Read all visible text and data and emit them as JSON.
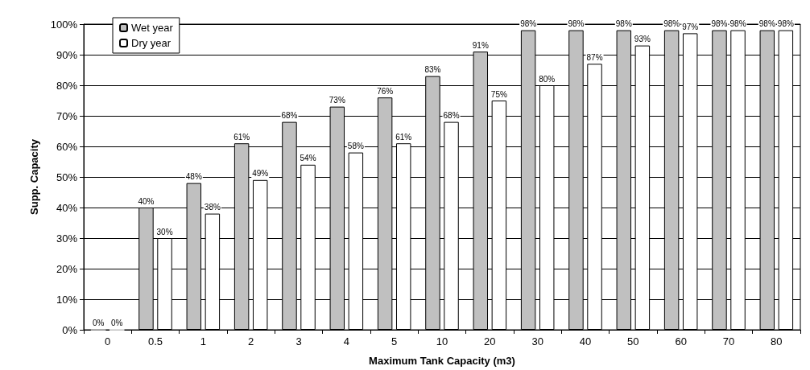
{
  "chart_data": {
    "type": "bar",
    "xlabel": "Maximum Tank Capacity (m3)",
    "ylabel": "Supp. Capacity",
    "categories": [
      "0",
      "0.5",
      "1",
      "2",
      "3",
      "4",
      "5",
      "10",
      "20",
      "30",
      "40",
      "50",
      "60",
      "70",
      "80"
    ],
    "series": [
      {
        "name": "Wet year",
        "color": "#c0c0c0",
        "values": [
          0,
          40,
          48,
          61,
          68,
          73,
          76,
          83,
          91,
          98,
          98,
          98,
          98,
          98,
          98
        ],
        "value_labels": [
          "0%",
          "40%",
          "48%",
          "61%",
          "68%",
          "73%",
          "76%",
          "83%",
          "91%",
          "98%",
          "98%",
          "98%",
          "98%",
          "98%",
          "98%"
        ]
      },
      {
        "name": "Dry year",
        "color": "#ffffff",
        "values": [
          0,
          30,
          38,
          49,
          54,
          58,
          61,
          68,
          75,
          80,
          87,
          93,
          97,
          98,
          98
        ],
        "value_labels": [
          "0%",
          "30%",
          "38%",
          "49%",
          "54%",
          "58%",
          "61%",
          "68%",
          "75%",
          "80%",
          "87%",
          "93%",
          "97%",
          "98%",
          "98%"
        ]
      }
    ],
    "ylim": [
      0,
      100
    ],
    "yticks": [
      {
        "value": 0,
        "label": "0%"
      },
      {
        "value": 10,
        "label": "10%"
      },
      {
        "value": 20,
        "label": "20%"
      },
      {
        "value": 30,
        "label": "30%"
      },
      {
        "value": 40,
        "label": "40%"
      },
      {
        "value": 50,
        "label": "50%"
      },
      {
        "value": 60,
        "label": "60%"
      },
      {
        "value": 70,
        "label": "70%"
      },
      {
        "value": 80,
        "label": "80%"
      },
      {
        "value": 90,
        "label": "90%"
      },
      {
        "value": 100,
        "label": "100%"
      }
    ],
    "grid": "y",
    "legend": "top left"
  }
}
